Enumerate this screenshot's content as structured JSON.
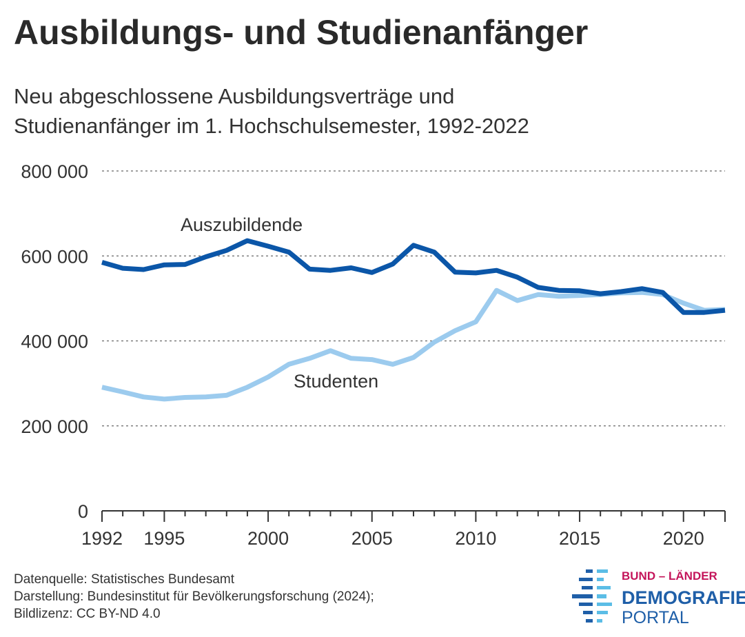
{
  "header": {
    "title": "Ausbildungs- und Studienanfänger",
    "subtitle_line1": "Neu abgeschlossene Ausbildungsverträge und",
    "subtitle_line2": "Studienanfänger im 1. Hochschulsemester, 1992-2022"
  },
  "chart_data": {
    "type": "line",
    "x": [
      1992,
      1993,
      1994,
      1995,
      1996,
      1997,
      1998,
      1999,
      2000,
      2001,
      2002,
      2003,
      2004,
      2005,
      2006,
      2007,
      2008,
      2009,
      2010,
      2011,
      2012,
      2013,
      2014,
      2015,
      2016,
      2017,
      2018,
      2019,
      2020,
      2021,
      2022
    ],
    "series": [
      {
        "name": "Auszubildende",
        "color": "#0b56a8",
        "values": [
          585000,
          571000,
          568000,
          579000,
          580000,
          598000,
          613000,
          636000,
          623000,
          609000,
          569000,
          566000,
          572000,
          561000,
          581000,
          625000,
          609000,
          562000,
          560000,
          566000,
          550000,
          526000,
          519000,
          518000,
          511000,
          516000,
          523000,
          514000,
          467000,
          467000,
          472000
        ]
      },
      {
        "name": "Studenten",
        "color": "#9ccbee",
        "values": [
          291000,
          280000,
          268000,
          263000,
          267000,
          268000,
          272000,
          291000,
          315000,
          345000,
          359000,
          377000,
          359000,
          356000,
          345000,
          361000,
          397000,
          424000,
          445000,
          519000,
          495000,
          509000,
          505000,
          507000,
          509000,
          513000,
          514000,
          509000,
          489000,
          472000,
          474000
        ]
      }
    ],
    "yticks": [
      "0",
      "200 000",
      "400 000",
      "600 000",
      "800 000"
    ],
    "ytick_values": [
      0,
      200000,
      400000,
      600000,
      800000
    ],
    "xticks": [
      "1992",
      "1995",
      "2000",
      "2005",
      "2010",
      "2015",
      "2020"
    ],
    "xtick_values": [
      1992,
      1995,
      2000,
      2005,
      2010,
      2015,
      2020
    ],
    "ylim": [
      0,
      800000
    ],
    "xlim": [
      1992,
      2022
    ],
    "grid": true,
    "annotations": {
      "auszubildende_label": "Auszubildende",
      "studenten_label": "Studenten"
    }
  },
  "footer": {
    "source": "Datenquelle: Statistisches Bundesamt",
    "darstellung": "Darstellung: Bundesinstitut für Bevölkerungsforschung (2024);",
    "license": "Bildlizenz: CC BY-ND 4.0"
  },
  "logo": {
    "line1": "BUND – LÄNDER",
    "line2": "DEMOGRAFIE",
    "line3": "PORTAL",
    "color_accent": "#c4145a",
    "color_primary": "#1f5fa8",
    "color_light": "#5bbde6"
  }
}
